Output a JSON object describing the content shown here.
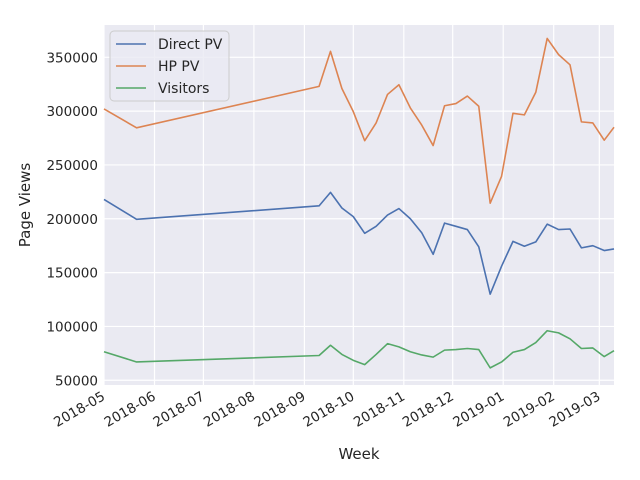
{
  "chart_data": {
    "type": "line",
    "xlabel": "Week",
    "ylabel": "Page Views",
    "x_tick_labels": [
      "2018-05",
      "2018-06",
      "2018-07",
      "2018-08",
      "2018-09",
      "2018-10",
      "2018-11",
      "2018-12",
      "2019-01",
      "2019-02",
      "2019-03"
    ],
    "y_tick_labels": [
      "50000",
      "100000",
      "150000",
      "200000",
      "250000",
      "300000",
      "350000"
    ],
    "y_ticks": [
      50000,
      100000,
      150000,
      200000,
      250000,
      300000,
      350000
    ],
    "xlim": [
      "2018-05-01",
      "2019-03-10"
    ],
    "ylim": [
      45600,
      380000
    ],
    "grid": true,
    "legend_position": "top-left",
    "x": [
      "2018-05-01",
      "2018-05-21",
      "2018-09-10",
      "2018-09-17",
      "2018-09-24",
      "2018-10-01",
      "2018-10-08",
      "2018-10-15",
      "2018-10-22",
      "2018-10-29",
      "2018-11-05",
      "2018-11-12",
      "2018-11-19",
      "2018-11-26",
      "2018-12-03",
      "2018-12-10",
      "2018-12-17",
      "2018-12-24",
      "2018-12-31",
      "2019-01-07",
      "2019-01-14",
      "2019-01-21",
      "2019-01-28",
      "2019-02-04",
      "2019-02-11",
      "2019-02-18",
      "2019-02-25",
      "2019-03-04",
      "2019-03-10"
    ],
    "series": [
      {
        "name": "Direct PV",
        "color": "#4c72b0",
        "values": [
          218000,
          199500,
          212000,
          224500,
          210000,
          202000,
          186500,
          193000,
          203500,
          209500,
          200000,
          187000,
          167000,
          196000,
          193000,
          190000,
          174000,
          130000,
          156000,
          179000,
          174500,
          178500,
          195000,
          190000,
          190500,
          173000,
          175000,
          170500,
          172000
        ]
      },
      {
        "name": "HP PV",
        "color": "#dd8452",
        "values": [
          302000,
          284500,
          323000,
          355500,
          321000,
          299500,
          272500,
          289000,
          315500,
          324500,
          303000,
          287000,
          268000,
          305000,
          307000,
          314000,
          304500,
          214500,
          239500,
          298000,
          296500,
          317500,
          367500,
          352500,
          343000,
          290000,
          289000,
          273000,
          285000
        ]
      },
      {
        "name": "Visitors",
        "color": "#55a868",
        "values": [
          76500,
          67000,
          73000,
          82500,
          74000,
          68500,
          64500,
          74000,
          84000,
          81000,
          76500,
          73500,
          71500,
          78000,
          78500,
          79500,
          78500,
          61500,
          67000,
          76000,
          78500,
          85000,
          96000,
          94000,
          88500,
          79500,
          80000,
          72000,
          77500
        ]
      }
    ]
  }
}
